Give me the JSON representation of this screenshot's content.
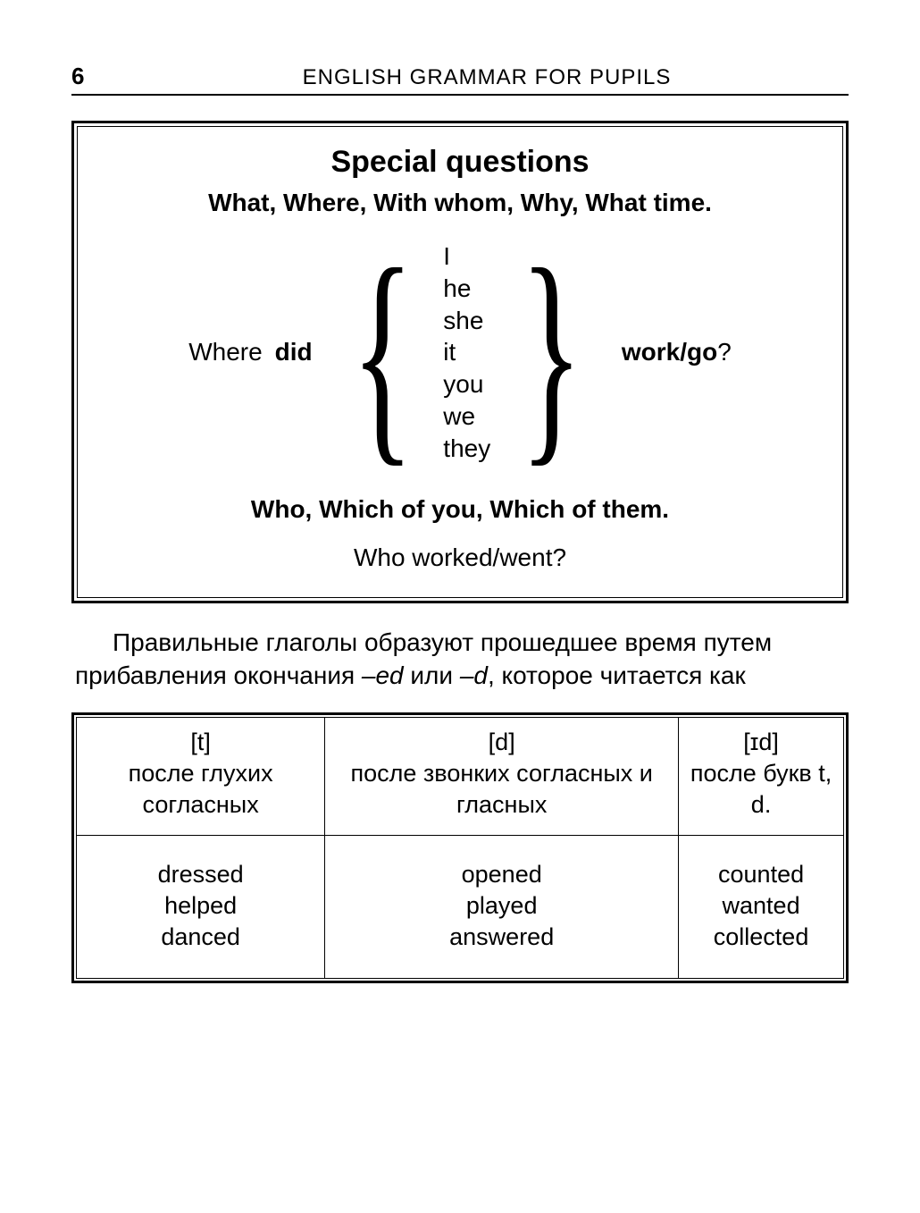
{
  "page_number": "6",
  "book_title": "ENGLISH GRAMMAR FOR PUPILS",
  "box": {
    "title": "Special  questions",
    "subtitle": "What, Where, With whom, Why, What time.",
    "where": "Where",
    "did": "did",
    "pronouns": [
      "I",
      "he",
      "she",
      "it",
      "you",
      "we",
      "they"
    ],
    "verb": "work/go",
    "question_mark": "?",
    "subtitle2": "Who, Which of you, Which of them.",
    "example": "Who worked/went?"
  },
  "paragraph": {
    "t1": "Правильные глаголы образуют прошедшее время путем прибавления окончания ",
    "e1": "–ed",
    "t2": " или ",
    "e2": "–d",
    "t3": ", которое читается как"
  },
  "table": {
    "col1": {
      "ipa": "[t]",
      "desc": "после глухих согласных",
      "words": [
        "dressed",
        "helped",
        "danced"
      ]
    },
    "col2": {
      "ipa": "[d]",
      "desc": "после звонких согласных и гласных",
      "words": [
        "opened",
        "played",
        "answered"
      ]
    },
    "col3": {
      "ipa": "[ɪd]",
      "desc": "после букв t, d.",
      "words": [
        "counted",
        "wanted",
        "collected"
      ]
    }
  },
  "brace_fontsize": "268px"
}
